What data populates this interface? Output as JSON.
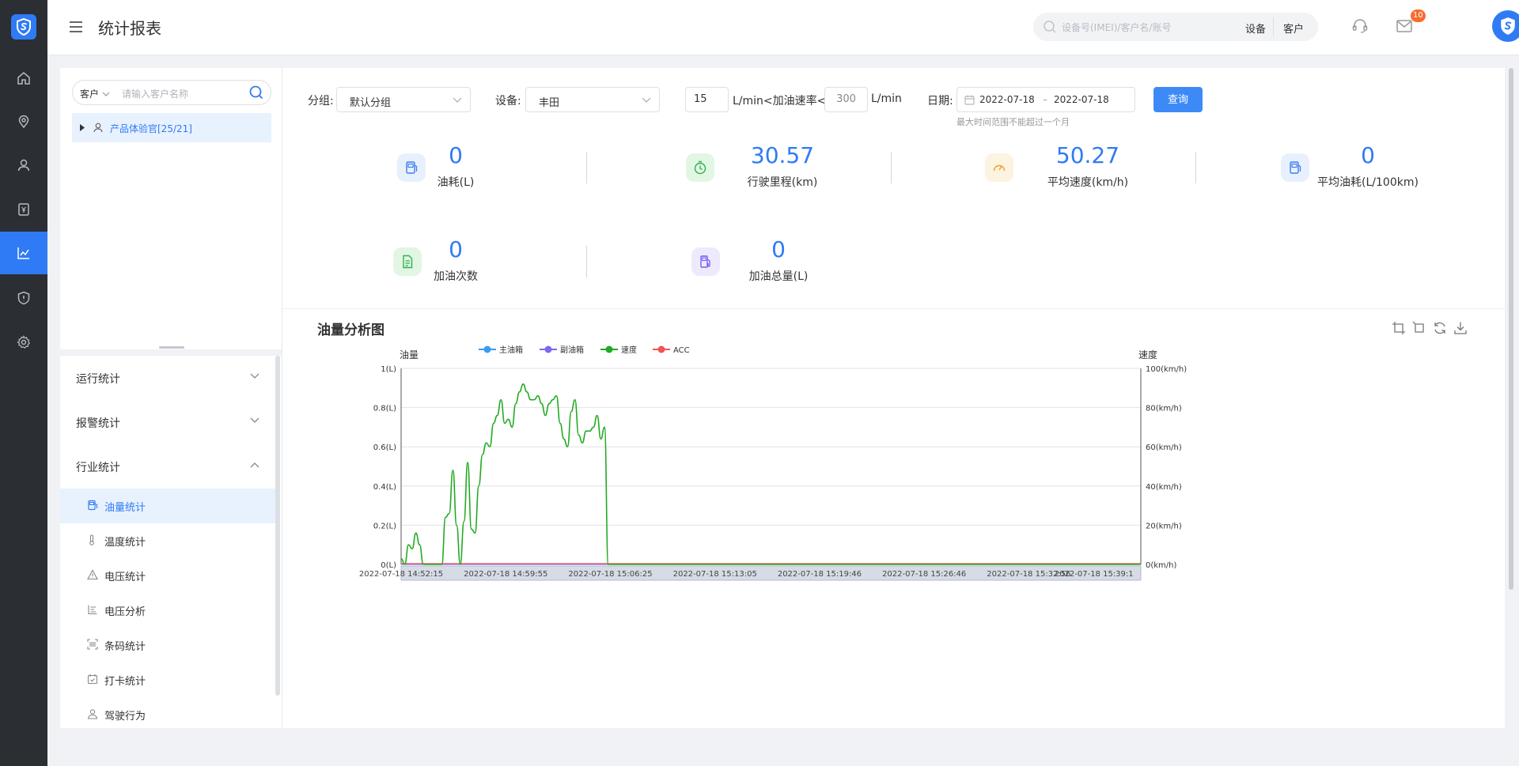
{
  "header": {
    "title": "统计报表",
    "search_placeholder": "设备号(IMEI)/客户名/账号",
    "search_opt_device": "设备",
    "search_opt_customer": "客户",
    "mail_badge": "10"
  },
  "rail": {
    "items": [
      "home-icon",
      "location-icon",
      "user-icon",
      "yuan-icon",
      "chart-icon",
      "shield-icon",
      "gear-icon"
    ],
    "active_index": 4
  },
  "left_panel": {
    "search_type": "客户",
    "search_placeholder": "请输入客户名称",
    "tree_node": "产品体验官[25/21]",
    "groups": {
      "run": "运行统计",
      "alarm": "报警统计",
      "industry": "行业统计"
    },
    "items": {
      "oil": "油量统计",
      "temp": "温度统计",
      "voltage": "电压统计",
      "voltage_analysis": "电压分析",
      "barcode": "条码统计",
      "checkin": "打卡统计",
      "driving": "驾驶行为"
    }
  },
  "filters": {
    "group_label": "分组:",
    "group_value": "默认分组",
    "device_label": "设备:",
    "device_value": "丰田",
    "rate_min": "15",
    "rate_mid": "L/min<加油速率<",
    "rate_max": "300",
    "rate_unit": "L/min",
    "date_label": "日期:",
    "date_start": "2022-07-18",
    "date_sep": "–",
    "date_end": "2022-07-18",
    "date_hint": "最大时间范围不能超过一个月",
    "query_label": "查询"
  },
  "stats": {
    "fuel": {
      "value": "0",
      "label": "油耗(L)"
    },
    "mileage": {
      "value": "30.57",
      "label": "行驶里程(km)"
    },
    "avg_speed": {
      "value": "50.27",
      "label": "平均速度(km/h)"
    },
    "avg_fuel": {
      "value": "0",
      "label": "平均油耗(L/100km)"
    },
    "refuel_count": {
      "value": "0",
      "label": "加油次数"
    },
    "refuel_total": {
      "value": "0",
      "label": "加油总量(L)"
    }
  },
  "chart_title": "油量分析图",
  "chart_data": {
    "type": "line",
    "title": "油量分析图",
    "ylabel_left": "油量",
    "ylabel_right": "速度",
    "y_left_ticks": [
      "0(L)",
      "0.2(L)",
      "0.4(L)",
      "0.6(L)",
      "0.8(L)",
      "1(L)"
    ],
    "y_right_ticks": [
      "0(km/h)",
      "20(km/h)",
      "40(km/h)",
      "60(km/h)",
      "80(km/h)",
      "100(km/h)"
    ],
    "ylim_left": [
      0,
      1
    ],
    "ylim_right": [
      0,
      100
    ],
    "x_ticks": [
      "2022-07-18 14:52:15",
      "2022-07-18 14:59:55",
      "2022-07-18 15:06:25",
      "2022-07-18 15:13:05",
      "2022-07-18 15:19:46",
      "2022-07-18 15:26:46",
      "2022-07-18 15:32:56",
      "2022-07-18 15:39:1"
    ],
    "legend": [
      "主油箱",
      "副油箱",
      "速度",
      "ACC"
    ],
    "legend_colors": [
      "#3a9bf0",
      "#7b68ee",
      "#22aa22",
      "#ee5555"
    ],
    "series": [
      {
        "name": "主油箱",
        "values_note": "0",
        "values": [
          0
        ]
      },
      {
        "name": "副油箱",
        "values": [
          0
        ]
      },
      {
        "name": "ACC",
        "values": [
          0
        ]
      },
      {
        "name": "速度",
        "x_fraction": [
          0,
          0.005,
          0.01,
          0.015,
          0.02,
          0.025,
          0.03,
          0.035,
          0.04,
          0.045,
          0.05,
          0.055,
          0.06,
          0.065,
          0.07,
          0.075,
          0.08,
          0.085,
          0.09,
          0.095,
          0.1,
          0.105,
          0.11,
          0.115,
          0.12,
          0.125,
          0.13,
          0.135,
          0.14,
          0.145,
          0.15,
          0.155,
          0.16,
          0.165,
          0.17,
          0.175,
          0.18,
          0.185,
          0.19,
          0.195,
          0.2,
          0.205,
          0.21,
          0.215,
          0.22,
          0.225,
          0.23,
          0.235,
          0.24,
          0.245,
          0.25,
          0.255,
          0.26,
          0.265,
          0.27,
          0.275,
          0.28,
          0.285,
          0.29,
          0.295,
          0.3,
          0.305,
          0.31,
          0.315,
          0.32,
          0.325,
          0.33,
          0.335,
          0.34,
          0.345,
          0.35,
          0.355,
          0.36,
          0.365,
          0.37,
          0.375,
          0.38,
          0.385,
          0.39,
          0.395,
          0.4,
          0.405,
          0.41,
          0.415,
          0.42,
          0.425,
          0.43,
          0.435,
          0.44,
          0.445,
          0.45,
          0.455,
          0.46,
          0.465,
          0.47,
          0.475,
          0.48,
          0.485,
          0.49,
          0.495,
          0.5,
          0.505,
          0.51,
          0.515,
          0.52,
          0.525,
          0.53,
          0.535,
          0.54,
          0.545,
          0.55,
          0.555,
          0.56,
          0.565,
          0.57,
          0.575,
          0.58,
          0.585,
          0.59,
          0.595,
          0.6,
          0.605,
          0.61,
          0.615,
          0.62,
          0.625,
          0.63,
          0.635,
          0.64,
          0.645,
          0.65,
          0.655,
          0.66,
          0.665,
          0.67,
          0.675,
          0.68,
          0.685,
          0.69,
          0.695,
          0.7,
          0.705,
          0.71,
          0.715,
          0.72,
          0.725,
          0.73,
          0.735,
          0.74,
          0.745,
          0.75,
          0.755,
          0.76,
          0.765,
          0.77,
          0.775,
          0.78,
          0.785,
          0.79,
          0.795,
          0.8,
          0.805,
          0.81,
          0.815,
          0.82,
          0.825,
          0.83,
          0.835,
          0.84,
          0.845,
          0.85,
          0.855,
          0.86,
          0.865,
          0.87,
          0.875,
          0.88,
          0.885,
          0.89,
          0.895,
          0.9,
          0.905,
          0.91,
          0.915,
          0.92,
          0.925,
          0.93,
          0.935,
          0.94,
          0.945,
          0.95,
          0.955,
          0.96,
          0.965,
          0.97,
          0.975,
          0.98,
          0.985,
          0.99,
          0.995,
          1
        ],
        "values": [
          3,
          0,
          10,
          8,
          16,
          10,
          0,
          0,
          0,
          0,
          0,
          0,
          24,
          26,
          48,
          20,
          0,
          22,
          52,
          18,
          16,
          40,
          56,
          62,
          60,
          72,
          76,
          84,
          72,
          74,
          70,
          82,
          88,
          92,
          88,
          84,
          84,
          86,
          82,
          76,
          82,
          84,
          86,
          72,
          64,
          60,
          78,
          84,
          66,
          62,
          68,
          68,
          70,
          76,
          64,
          70,
          0,
          0,
          0,
          0,
          0,
          0,
          0,
          0,
          0,
          0,
          0,
          0,
          0,
          0,
          0,
          0,
          0,
          0,
          0,
          0,
          0,
          0,
          0,
          0,
          0,
          0,
          0,
          0,
          0,
          0,
          0,
          0,
          0,
          0,
          0,
          0,
          0,
          0,
          0,
          0,
          0,
          0,
          0,
          0,
          0,
          0,
          0,
          0,
          0,
          0,
          0,
          0,
          0,
          0,
          0,
          0,
          0,
          0,
          0,
          0,
          0,
          0,
          0,
          0,
          0,
          0,
          0,
          0,
          0,
          0,
          0,
          0,
          0,
          0,
          0,
          0,
          0,
          0,
          0,
          0,
          0,
          0,
          0,
          0,
          0,
          0,
          0,
          0,
          0,
          0,
          0,
          0,
          0,
          0,
          0,
          0,
          0,
          0,
          0,
          0,
          0,
          0,
          0,
          0,
          0,
          0,
          0,
          0,
          0,
          0,
          0,
          0,
          0,
          0,
          0,
          0,
          0,
          0,
          0,
          0,
          0,
          0,
          0,
          0,
          0,
          0,
          0,
          0,
          0,
          0,
          0,
          0,
          0,
          0,
          0,
          0,
          0,
          0,
          0,
          0,
          0,
          0,
          0,
          0,
          0
        ]
      }
    ]
  }
}
